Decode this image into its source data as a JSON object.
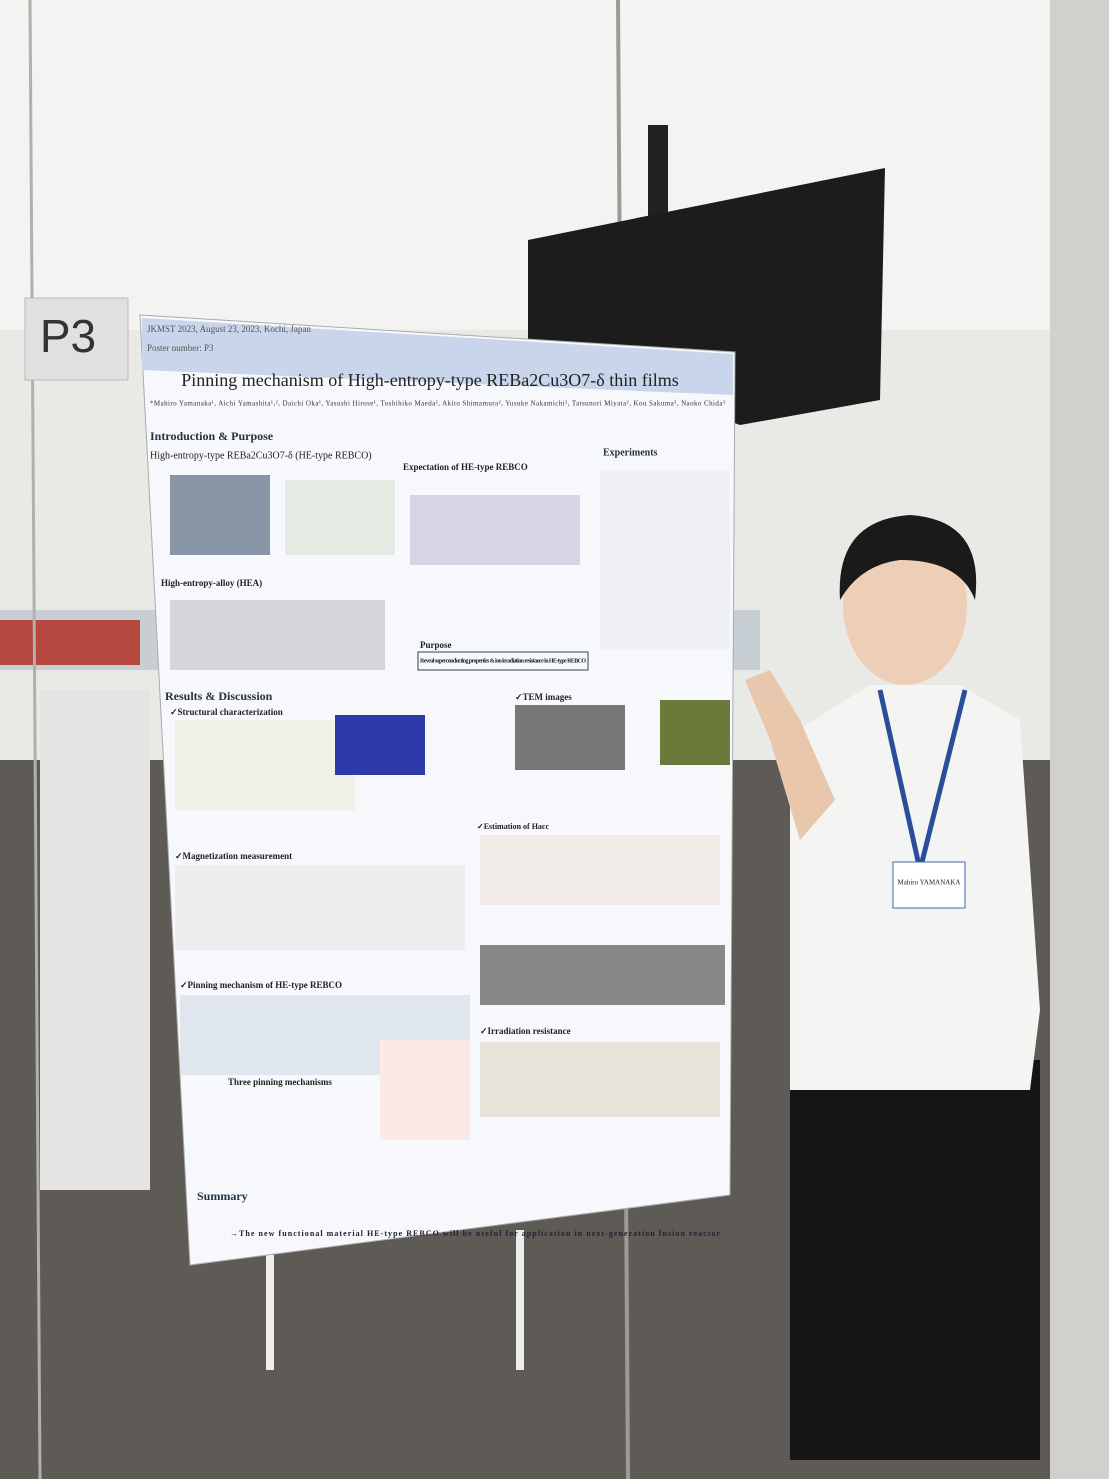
{
  "sign": "P3",
  "poster": {
    "conference": "JKMST 2023, August 23, 2023, Kochi, Japan",
    "poster_number": "Poster number: P3",
    "title": "Pinning mechanism of High-entropy-type REBa2Cu3O7-δ thin films",
    "authors": "*Mahiro Yamanaka¹, Aichi Yamashita¹,², Daichi Oka¹, Yasushi Hirose¹, Toshihiko Maeda², Akito Shimamura², Yusuke Nakamichi², Tatsunori Miyata², Kou Sakuma³, Naoko Chida³",
    "sections": [
      "Introduction & Purpose",
      "Experiments",
      "Results & Discussion",
      "Summary"
    ],
    "subheadings": [
      "High-entropy-type REBa2Cu3O7-δ (HE-type REBCO)",
      "Expectation of HE-type REBCO",
      "High-entropy-alloy (HEA)",
      "Purpose",
      "✓Structural characterization",
      "✓TEM images",
      "✓Magnetization measurement",
      "✓Estimation of Hacc",
      "✓Pinning mechanism of HE-type REBCO",
      "✓Irradiation resistance",
      "Three pinning mechanisms"
    ],
    "purpose": "Reveal superconducting properties & ion irradiation resistance in HE-type REBCO",
    "summary_final": "→The new functional material HE-type REBCO will be useful for application in next-generation fusion reactor"
  },
  "name_tag": "Mahiro YAMANAKA"
}
